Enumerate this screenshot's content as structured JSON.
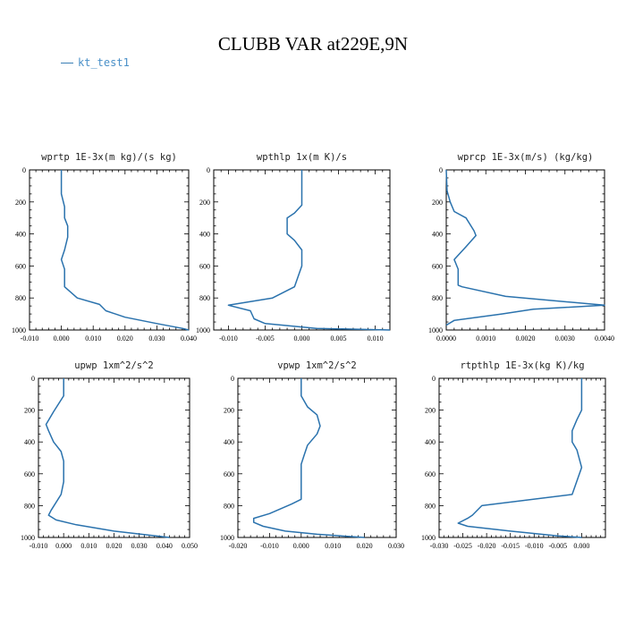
{
  "title": "CLUBB VAR at229E,9N",
  "legend": {
    "label": "kt_test1",
    "color": "#3a7fb5"
  },
  "series_color": "#2a72ad",
  "chart_data": [
    {
      "type": "line",
      "title": "wprtp  1E-3x(m kg)/(s kg)",
      "series_name": "kt_test1",
      "xlim": [
        -0.01,
        0.04
      ],
      "ylim": [
        0,
        1000
      ],
      "x_ticks": [
        -0.01,
        0.0,
        0.01,
        0.02,
        0.03,
        0.04
      ],
      "x_tick_labels": [
        "-0.010",
        "0.000",
        "0.010",
        "0.020",
        "0.030",
        "0.040"
      ],
      "y_ticks": [
        0,
        200,
        400,
        600,
        800,
        1000
      ],
      "y_tick_labels": [
        "0",
        "200",
        "400",
        "600",
        "800",
        "1000"
      ],
      "points": [
        [
          0.0,
          0
        ],
        [
          0.0,
          150
        ],
        [
          0.001,
          230
        ],
        [
          0.001,
          300
        ],
        [
          0.002,
          350
        ],
        [
          0.002,
          420
        ],
        [
          0.001,
          500
        ],
        [
          0.0,
          560
        ],
        [
          0.001,
          620
        ],
        [
          0.001,
          700
        ],
        [
          0.001,
          730
        ],
        [
          0.005,
          800
        ],
        [
          0.012,
          840
        ],
        [
          0.014,
          880
        ],
        [
          0.02,
          920
        ],
        [
          0.03,
          960
        ],
        [
          0.038,
          990
        ],
        [
          0.04,
          1000
        ]
      ]
    },
    {
      "type": "line",
      "title": "wpthlp  1x(m K)/s",
      "series_name": "kt_test1",
      "xlim": [
        -0.012,
        0.012
      ],
      "ylim": [
        0,
        1000
      ],
      "x_ticks": [
        -0.01,
        -0.005,
        0.0,
        0.005,
        0.01
      ],
      "x_tick_labels": [
        "-0.010",
        "-0.005",
        "0.000",
        "0.005",
        "0.010"
      ],
      "y_ticks": [
        0,
        200,
        400,
        600,
        800,
        1000
      ],
      "y_tick_labels": [
        "0",
        "200",
        "400",
        "600",
        "800",
        "1000"
      ],
      "points": [
        [
          0.0,
          0
        ],
        [
          0.0,
          150
        ],
        [
          0.0,
          220
        ],
        [
          -0.001,
          270
        ],
        [
          -0.002,
          300
        ],
        [
          -0.002,
          400
        ],
        [
          -0.001,
          440
        ],
        [
          0.0,
          500
        ],
        [
          0.0,
          600
        ],
        [
          -0.001,
          730
        ],
        [
          -0.004,
          800
        ],
        [
          -0.01,
          845
        ],
        [
          -0.007,
          880
        ],
        [
          -0.0065,
          930
        ],
        [
          -0.005,
          960
        ],
        [
          0.002,
          990
        ],
        [
          0.012,
          1000
        ]
      ]
    },
    {
      "type": "line",
      "title": "wprcp  1E-3x(m/s) (kg/kg)",
      "series_name": "kt_test1",
      "xlim": [
        0.0,
        0.004
      ],
      "ylim": [
        0,
        1000
      ],
      "x_ticks": [
        0.0,
        0.001,
        0.002,
        0.003,
        0.004
      ],
      "x_tick_labels": [
        "0.0000",
        "0.0010",
        "0.0020",
        "0.0030",
        "0.0040"
      ],
      "y_ticks": [
        0,
        200,
        400,
        600,
        800,
        1000
      ],
      "y_tick_labels": [
        "0",
        "200",
        "400",
        "600",
        "800",
        "1000"
      ],
      "points": [
        [
          0.0,
          0
        ],
        [
          2e-05,
          130
        ],
        [
          0.0001,
          200
        ],
        [
          0.0002,
          260
        ],
        [
          0.0005,
          300
        ],
        [
          0.0007,
          380
        ],
        [
          0.00075,
          410
        ],
        [
          0.0005,
          480
        ],
        [
          0.0002,
          560
        ],
        [
          0.0003,
          620
        ],
        [
          0.0003,
          720
        ],
        [
          0.0004,
          730
        ],
        [
          0.0015,
          790
        ],
        [
          0.004,
          845
        ],
        [
          0.0022,
          870
        ],
        [
          0.0014,
          900
        ],
        [
          0.0002,
          940
        ],
        [
          0.0,
          970
        ]
      ]
    },
    {
      "type": "line",
      "title": "upwp  1xm^2/s^2",
      "series_name": "kt_test1",
      "xlim": [
        -0.01,
        0.05
      ],
      "ylim": [
        0,
        1000
      ],
      "x_ticks": [
        -0.01,
        0.0,
        0.01,
        0.02,
        0.03,
        0.04,
        0.05
      ],
      "x_tick_labels": [
        "-0.010",
        "0.000",
        "0.010",
        "0.020",
        "0.030",
        "0.040",
        "0.050"
      ],
      "y_ticks": [
        0,
        200,
        400,
        600,
        800,
        1000
      ],
      "y_tick_labels": [
        "0",
        "200",
        "400",
        "600",
        "800",
        "1000"
      ],
      "points": [
        [
          0.0,
          0
        ],
        [
          0.0,
          110
        ],
        [
          -0.004,
          210
        ],
        [
          -0.007,
          290
        ],
        [
          -0.006,
          330
        ],
        [
          -0.004,
          400
        ],
        [
          -0.001,
          460
        ],
        [
          0.0,
          520
        ],
        [
          0.0,
          650
        ],
        [
          -0.001,
          730
        ],
        [
          -0.005,
          830
        ],
        [
          -0.006,
          860
        ],
        [
          -0.003,
          890
        ],
        [
          0.005,
          920
        ],
        [
          0.02,
          960
        ],
        [
          0.042,
          1000
        ]
      ]
    },
    {
      "type": "line",
      "title": "vpwp  1xm^2/s^2",
      "series_name": "kt_test1",
      "xlim": [
        -0.02,
        0.03
      ],
      "ylim": [
        0,
        1000
      ],
      "x_ticks": [
        -0.02,
        -0.01,
        0.0,
        0.01,
        0.02,
        0.03
      ],
      "x_tick_labels": [
        "-0.020",
        "-0.010",
        "0.000",
        "0.010",
        "0.020",
        "0.030"
      ],
      "y_ticks": [
        0,
        200,
        400,
        600,
        800,
        1000
      ],
      "y_tick_labels": [
        "0",
        "200",
        "400",
        "600",
        "800",
        "1000"
      ],
      "points": [
        [
          0.0,
          0
        ],
        [
          0.0,
          110
        ],
        [
          0.002,
          180
        ],
        [
          0.005,
          230
        ],
        [
          0.006,
          300
        ],
        [
          0.005,
          350
        ],
        [
          0.002,
          420
        ],
        [
          0.001,
          480
        ],
        [
          0.0,
          540
        ],
        [
          0.0,
          760
        ],
        [
          -0.003,
          790
        ],
        [
          -0.01,
          850
        ],
        [
          -0.015,
          880
        ],
        [
          -0.015,
          905
        ],
        [
          -0.012,
          930
        ],
        [
          -0.005,
          960
        ],
        [
          0.005,
          980
        ],
        [
          0.02,
          1000
        ]
      ]
    },
    {
      "type": "line",
      "title": "rtpthlp  1E-3x(kg K)/kg",
      "series_name": "kt_test1",
      "xlim": [
        -0.03,
        0.005
      ],
      "ylim": [
        0,
        1000
      ],
      "x_ticks": [
        -0.03,
        -0.025,
        -0.02,
        -0.015,
        -0.01,
        -0.005,
        0.0
      ],
      "x_tick_labels": [
        "-0.030",
        "-0.025",
        "-0.020",
        "-0.015",
        "-0.010",
        "-0.005",
        "0.000"
      ],
      "y_ticks": [
        0,
        200,
        400,
        600,
        800,
        1000
      ],
      "y_tick_labels": [
        "0",
        "200",
        "400",
        "600",
        "800",
        "1000"
      ],
      "points": [
        [
          0.0,
          0
        ],
        [
          0.0,
          200
        ],
        [
          -0.001,
          260
        ],
        [
          -0.002,
          330
        ],
        [
          -0.002,
          400
        ],
        [
          -0.001,
          450
        ],
        [
          0.0,
          560
        ],
        [
          -0.002,
          730
        ],
        [
          -0.021,
          800
        ],
        [
          -0.023,
          860
        ],
        [
          -0.024,
          880
        ],
        [
          -0.026,
          910
        ],
        [
          -0.024,
          930
        ],
        [
          -0.015,
          960
        ],
        [
          -0.005,
          990
        ],
        [
          0.0,
          1000
        ]
      ]
    }
  ]
}
